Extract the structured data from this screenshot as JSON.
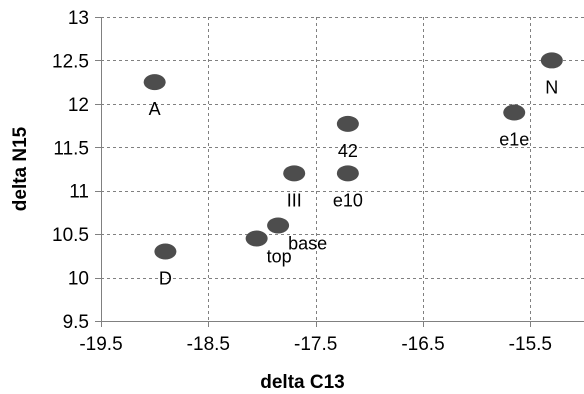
{
  "chart_data": {
    "type": "scatter",
    "title": "",
    "xlabel": "delta C13",
    "ylabel": "delta  N15",
    "xlim": [
      -19.5,
      -15.0
    ],
    "ylim": [
      9.5,
      13.0
    ],
    "x_ticks": [
      "-19.5",
      "-18.5",
      "-17.5",
      "-16.5",
      "-15.5"
    ],
    "x_tick_values": [
      -19.5,
      -18.5,
      -17.5,
      -16.5,
      -15.5
    ],
    "y_ticks": [
      "9.5",
      "10",
      "10.5",
      "11",
      "11.5",
      "12",
      "12.5",
      "13"
    ],
    "y_tick_values": [
      9.5,
      10.0,
      10.5,
      11.0,
      11.5,
      12.0,
      12.5,
      13.0
    ],
    "grid": true,
    "legend": "none",
    "marker_color": "#4d4d4d",
    "points": [
      {
        "label": "A",
        "x": -19.0,
        "y": 12.25,
        "label_pos": "below"
      },
      {
        "label": "D",
        "x": -18.9,
        "y": 10.3,
        "label_pos": "below"
      },
      {
        "label": "top",
        "x": -18.05,
        "y": 10.45,
        "label_pos": "below-right"
      },
      {
        "label": "base",
        "x": -17.85,
        "y": 10.6,
        "label_pos": "below-right"
      },
      {
        "label": "III",
        "x": -17.7,
        "y": 11.2,
        "label_pos": "below"
      },
      {
        "label": "42",
        "x": -17.2,
        "y": 11.77,
        "label_pos": "below"
      },
      {
        "label": "e10",
        "x": -17.2,
        "y": 11.2,
        "label_pos": "below"
      },
      {
        "label": "e1e",
        "x": -15.65,
        "y": 11.9,
        "label_pos": "below"
      },
      {
        "label": "N",
        "x": -15.3,
        "y": 12.5,
        "label_pos": "below"
      }
    ]
  }
}
